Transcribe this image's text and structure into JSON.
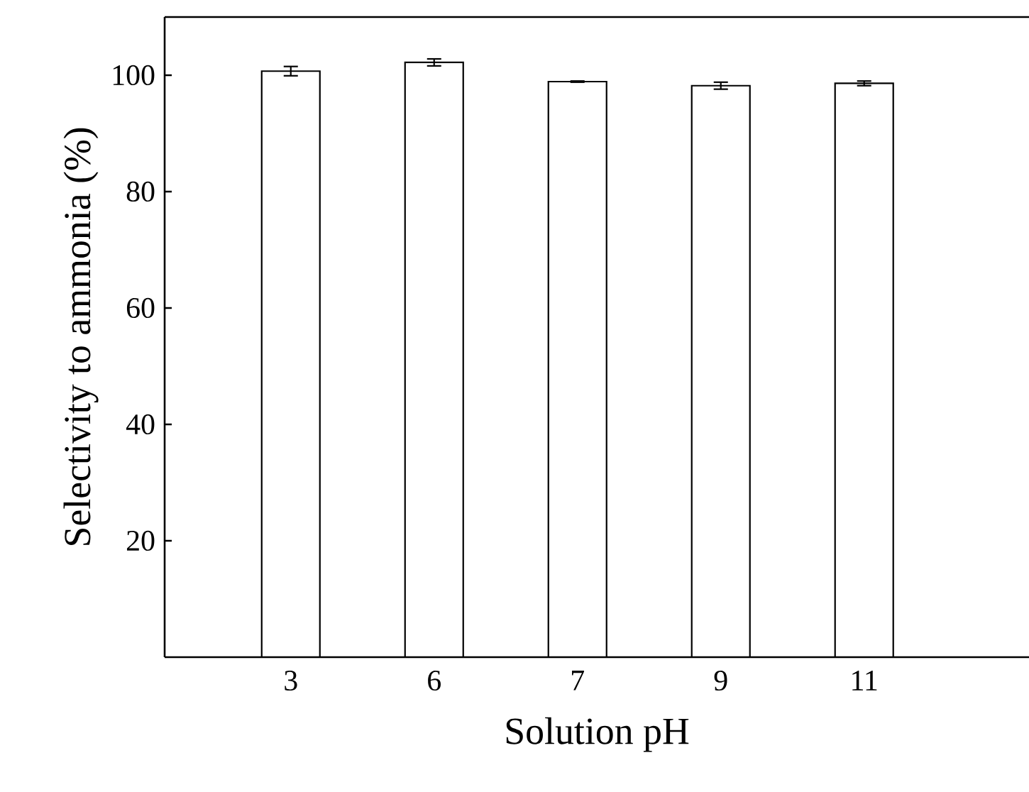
{
  "chart_data": {
    "type": "bar",
    "xlabel": "Solution pH",
    "ylabel": "Selectivity to ammonia (%)",
    "categories": [
      "3",
      "6",
      "7",
      "9",
      "11"
    ],
    "values": [
      100.7,
      102.2,
      98.9,
      98.2,
      98.6
    ],
    "errors": [
      0.8,
      0.6,
      0.1,
      0.6,
      0.4
    ],
    "color": "#ffffff",
    "ylim": [
      0,
      110
    ],
    "yticks": [
      20,
      40,
      60,
      80,
      100
    ],
    "grid": false
  }
}
